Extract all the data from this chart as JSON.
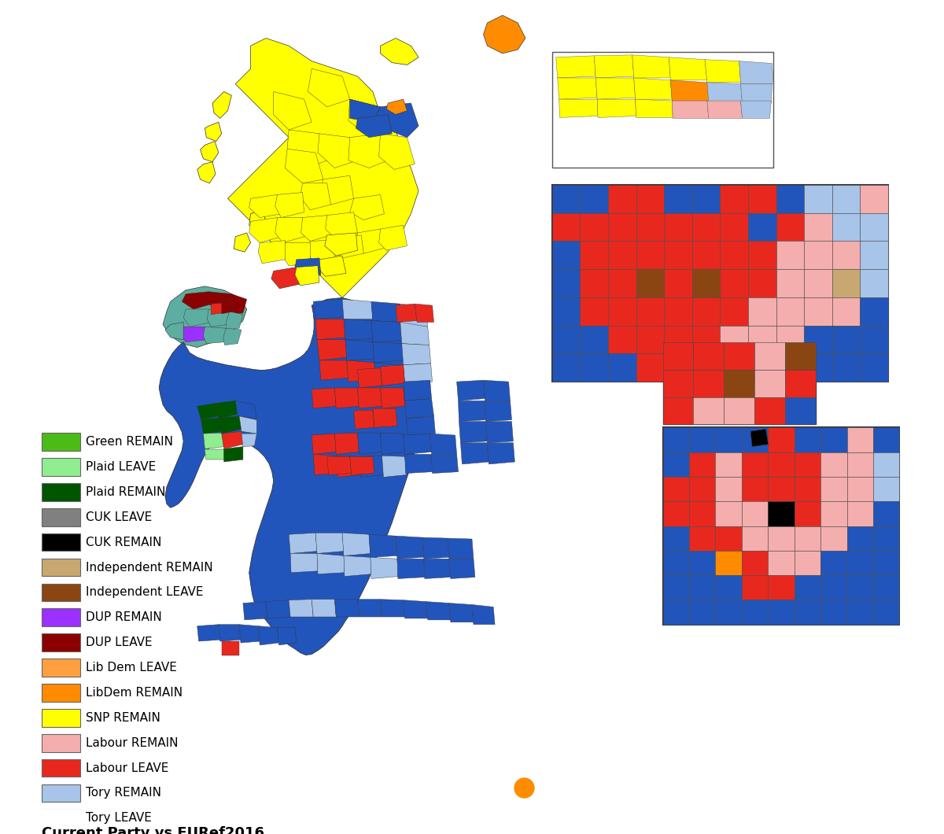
{
  "title": "Current Party vs EURef2016",
  "legend_items": [
    {
      "label": "Tory LEAVE",
      "color": "#2255BB"
    },
    {
      "label": "Tory REMAIN",
      "color": "#A8C4E8"
    },
    {
      "label": "Labour LEAVE",
      "color": "#E8281E"
    },
    {
      "label": "Labour REMAIN",
      "color": "#F4AEAD"
    },
    {
      "label": "SNP REMAIN",
      "color": "#FFFF00"
    },
    {
      "label": "LibDem REMAIN",
      "color": "#FF8C00"
    },
    {
      "label": "Lib Dem LEAVE",
      "color": "#FFA040"
    },
    {
      "label": "DUP LEAVE",
      "color": "#8B0000"
    },
    {
      "label": "DUP REMAIN",
      "color": "#9B30FF"
    },
    {
      "label": "Independent LEAVE",
      "color": "#8B4513"
    },
    {
      "label": "Independent REMAIN",
      "color": "#C8A870"
    },
    {
      "label": "CUK REMAIN",
      "color": "#000000"
    },
    {
      "label": "CUK LEAVE",
      "color": "#808080"
    },
    {
      "label": "Plaid REMAIN",
      "color": "#005500"
    },
    {
      "label": "Plaid LEAVE",
      "color": "#90EE90"
    },
    {
      "label": "Green REMAIN",
      "color": "#4CBB17"
    }
  ],
  "background_color": "#FFFFFF",
  "legend_title_fontsize": 13,
  "legend_fontsize": 11
}
